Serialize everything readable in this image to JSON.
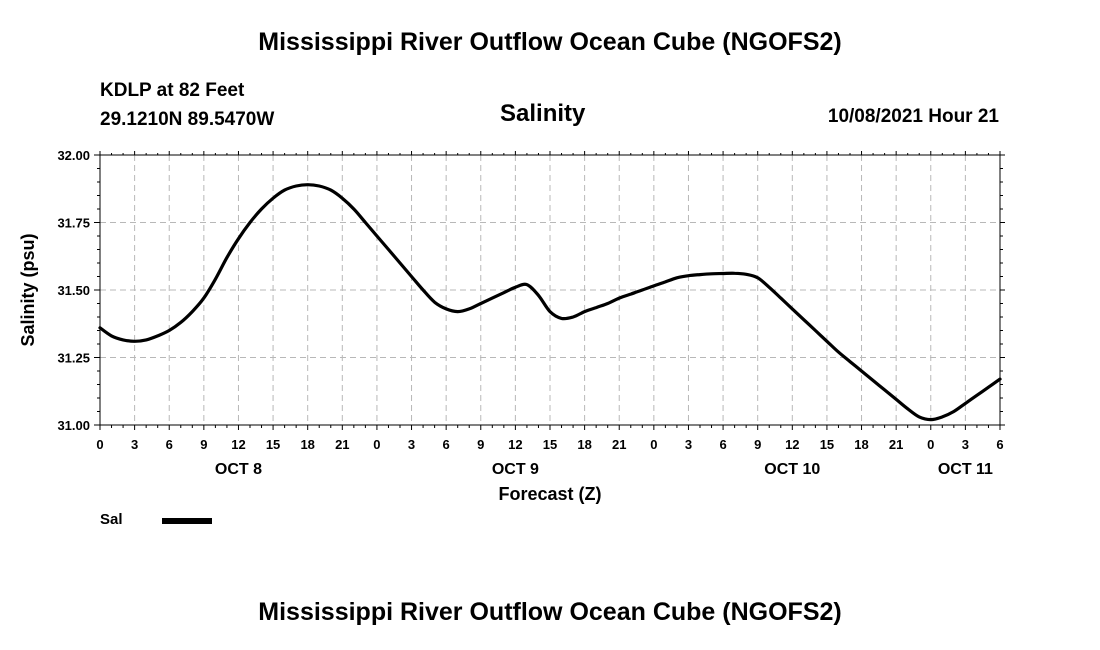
{
  "header": {
    "main_title": "Mississippi River Outflow Ocean Cube (NGOFS2)",
    "station_name": "KDLP at 82 Feet",
    "coordinates": "29.1210N  89.5470W",
    "variable": "Salinity",
    "datetime": "10/08/2021 Hour 21"
  },
  "footer": {
    "title": "Mississippi River Outflow Ocean Cube (NGOFS2)"
  },
  "chart_data": {
    "type": "line",
    "title": "Salinity",
    "xlabel": "Forecast (Z)",
    "ylabel": "Salinity (psu)",
    "ylim": [
      31.0,
      32.0
    ],
    "yticks": [
      "31.00",
      "31.25",
      "31.50",
      "31.75",
      "32.00"
    ],
    "xlim_hours": [
      0,
      78
    ],
    "xtick_labels": [
      "0",
      "3",
      "6",
      "9",
      "12",
      "15",
      "18",
      "21",
      "0",
      "3",
      "6",
      "9",
      "12",
      "15",
      "18",
      "21",
      "0",
      "3",
      "6",
      "9",
      "12",
      "15",
      "18",
      "21",
      "0",
      "3",
      "6"
    ],
    "day_labels": [
      {
        "label": "OCT 8",
        "hour": 12
      },
      {
        "label": "OCT 9",
        "hour": 36
      },
      {
        "label": "OCT 10",
        "hour": 60
      },
      {
        "label": "OCT 11",
        "hour": 75
      }
    ],
    "grid": true,
    "legend": [
      {
        "name": "Sal",
        "color": "#000000"
      }
    ],
    "series": [
      {
        "name": "Sal",
        "color": "#000000",
        "x_hours": [
          0,
          1,
          2,
          3,
          4,
          5,
          6,
          7,
          8,
          9,
          10,
          11,
          12,
          13,
          14,
          15,
          16,
          17,
          18,
          19,
          20,
          21,
          22,
          23,
          24,
          25,
          26,
          27,
          28,
          29,
          30,
          31,
          32,
          33,
          34,
          35,
          36,
          37,
          38,
          39,
          40,
          41,
          42,
          43,
          44,
          45,
          46,
          47,
          48,
          49,
          50,
          51,
          52,
          53,
          54,
          55,
          56,
          57,
          58,
          59,
          60,
          61,
          62,
          63,
          64,
          65,
          66,
          67,
          68,
          69,
          70,
          71,
          72,
          73,
          74,
          75,
          76,
          77,
          78
        ],
        "values": [
          31.36,
          31.33,
          31.315,
          31.31,
          31.315,
          31.33,
          31.35,
          31.38,
          31.42,
          31.47,
          31.54,
          31.62,
          31.69,
          31.75,
          31.8,
          31.84,
          31.87,
          31.885,
          31.89,
          31.885,
          31.87,
          31.84,
          31.8,
          31.75,
          31.7,
          31.65,
          31.6,
          31.55,
          31.5,
          31.455,
          31.43,
          31.42,
          31.43,
          31.45,
          31.47,
          31.49,
          31.51,
          31.52,
          31.48,
          31.42,
          31.395,
          31.4,
          31.42,
          31.435,
          31.45,
          31.47,
          31.485,
          31.5,
          31.515,
          31.53,
          31.545,
          31.553,
          31.557,
          31.56,
          31.561,
          31.562,
          31.558,
          31.545,
          31.51,
          31.47,
          31.43,
          31.39,
          31.35,
          31.31,
          31.27,
          31.235,
          31.2,
          31.165,
          31.13,
          31.095,
          31.06,
          31.03,
          31.02,
          31.03,
          31.05,
          31.08,
          31.11,
          31.14,
          31.17
        ]
      }
    ]
  }
}
